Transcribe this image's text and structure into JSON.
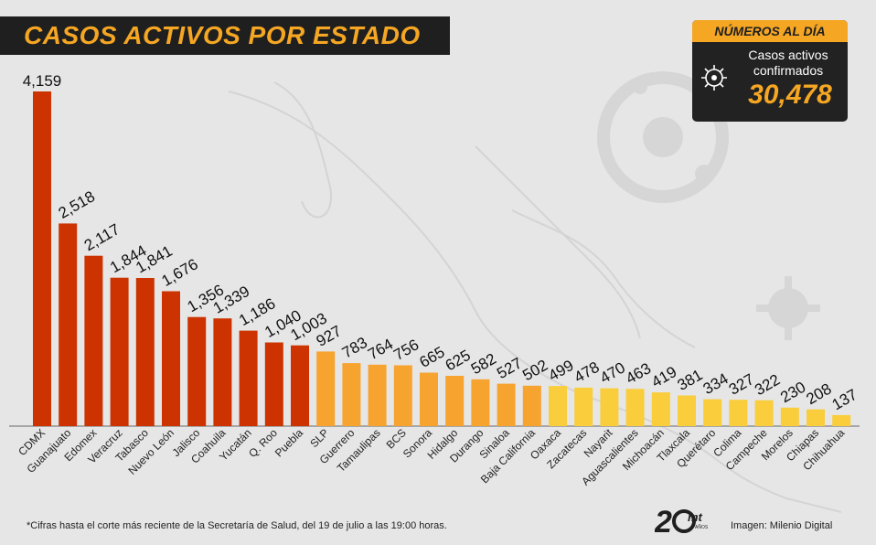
{
  "header": {
    "title": "CASOS ACTIVOS POR ESTADO"
  },
  "stats": {
    "header": "NÚMEROS AL DÍA",
    "label": "Casos activos confirmados",
    "value": "30,478",
    "icon": "virus-icon"
  },
  "footer": {
    "note": "*Cifras hasta el corte más reciente de la Secretaría de Salud, del 19 de julio a las 19:00 horas.",
    "credit": "Imagen: Milenio Digital",
    "logo_text": "20 mt AÑOS"
  },
  "colors": {
    "dark": "#1f1f1f",
    "accent": "#f5a623",
    "red": "#cc3300",
    "orange": "#f7a330",
    "yellow": "#f9cd3b"
  },
  "chart_data": {
    "type": "bar",
    "title": "CASOS ACTIVOS POR ESTADO",
    "xlabel": "",
    "ylabel": "",
    "ylim": [
      0,
      4159
    ],
    "grid": false,
    "categories": [
      "CDMX",
      "Guanajuato",
      "Edomex",
      "Veracruz",
      "Tabasco",
      "Nuevo León",
      "Jalisco",
      "Coahuila",
      "Yucatán",
      "Q. Roo",
      "Puebla",
      "SLP",
      "Guerrero",
      "Tamaulipas",
      "BCS",
      "Sonora",
      "Hidalgo",
      "Durango",
      "Sinaloa",
      "Baja California",
      "Oaxaca",
      "Zacatecas",
      "Nayarit",
      "Aguascalientes",
      "Michoacán",
      "Tlaxcala",
      "Querétaro",
      "Colima",
      "Campeche",
      "Morelos",
      "Chiapas",
      "Chihuahua"
    ],
    "values": [
      4159,
      2518,
      2117,
      1844,
      1841,
      1676,
      1356,
      1339,
      1186,
      1040,
      1003,
      927,
      783,
      764,
      756,
      665,
      625,
      582,
      527,
      502,
      499,
      478,
      470,
      463,
      419,
      381,
      334,
      327,
      322,
      230,
      208,
      137
    ],
    "value_labels": [
      "4,159",
      "2,518",
      "2,117",
      "1,844",
      "1,841",
      "1,676",
      "1,356",
      "1,339",
      "1,186",
      "1,040",
      "1,003",
      "927",
      "783",
      "764",
      "756",
      "665",
      "625",
      "582",
      "527",
      "502",
      "499",
      "478",
      "470",
      "463",
      "419",
      "381",
      "334",
      "327",
      "322",
      "230",
      "208",
      "137"
    ],
    "color_groups": [
      "red",
      "red",
      "red",
      "red",
      "red",
      "red",
      "red",
      "red",
      "red",
      "red",
      "red",
      "orange",
      "orange",
      "orange",
      "orange",
      "orange",
      "orange",
      "orange",
      "orange",
      "orange",
      "yellow",
      "yellow",
      "yellow",
      "yellow",
      "yellow",
      "yellow",
      "yellow",
      "yellow",
      "yellow",
      "yellow",
      "yellow",
      "yellow"
    ]
  }
}
